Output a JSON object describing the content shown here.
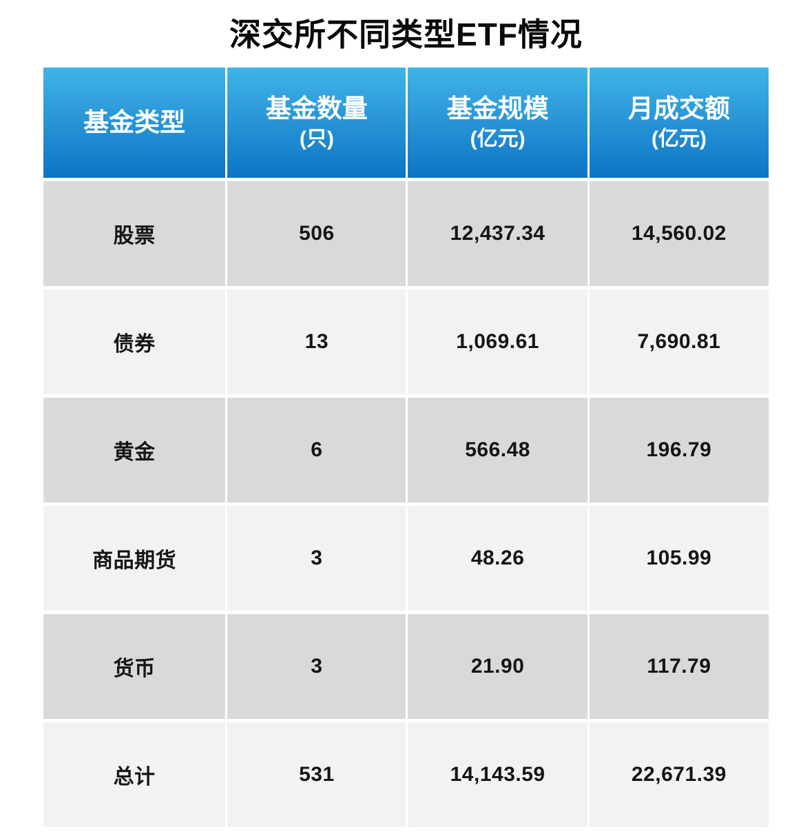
{
  "title": "深交所不同类型ETF情况",
  "header": {
    "cols": [
      {
        "line1": "基金类型",
        "line2": ""
      },
      {
        "line1": "基金数量",
        "line2": "(只)"
      },
      {
        "line1": "基金规模",
        "line2": "(亿元)"
      },
      {
        "line1": "月成交额",
        "line2": "(亿元)"
      }
    ]
  },
  "rows": [
    [
      "股票",
      "506",
      "12,437.34",
      "14,560.02"
    ],
    [
      "债券",
      "13",
      "1,069.61",
      "7,690.81"
    ],
    [
      "黄金",
      "6",
      "566.48",
      "196.79"
    ],
    [
      "商品期货",
      "3",
      "48.26",
      "105.99"
    ],
    [
      "货币",
      "3",
      "21.90",
      "117.79"
    ],
    [
      "总计",
      "531",
      "14,143.59",
      "22,671.39"
    ]
  ],
  "colors": {
    "header_gradient_top": "#41b4e7",
    "header_gradient_bottom": "#0d74c5",
    "header_text": "#ffffff",
    "row_dark": "#d9d9d9",
    "row_light": "#f1f2f2",
    "body_text": "#151515"
  },
  "chart_data": {
    "type": "table",
    "title": "深交所不同类型ETF情况",
    "columns": [
      "基金类型",
      "基金数量(只)",
      "基金规模(亿元)",
      "月成交额(亿元)"
    ],
    "rows": [
      {
        "基金类型": "股票",
        "基金数量_只": 506,
        "基金规模_亿元": 12437.34,
        "月成交额_亿元": 14560.02
      },
      {
        "基金类型": "债券",
        "基金数量_只": 13,
        "基金规模_亿元": 1069.61,
        "月成交额_亿元": 7690.81
      },
      {
        "基金类型": "黄金",
        "基金数量_只": 6,
        "基金规模_亿元": 566.48,
        "月成交额_亿元": 196.79
      },
      {
        "基金类型": "商品期货",
        "基金数量_只": 3,
        "基金规模_亿元": 48.26,
        "月成交额_亿元": 105.99
      },
      {
        "基金类型": "货币",
        "基金数量_只": 3,
        "基金规模_亿元": 21.9,
        "月成交额_亿元": 117.79
      },
      {
        "基金类型": "总计",
        "基金数量_只": 531,
        "基金规模_亿元": 14143.59,
        "月成交额_亿元": 22671.39
      }
    ],
    "layout": {
      "header_style": "blue-gradient",
      "row_striping": "gray-alternating",
      "grid": "white-gutters"
    }
  }
}
